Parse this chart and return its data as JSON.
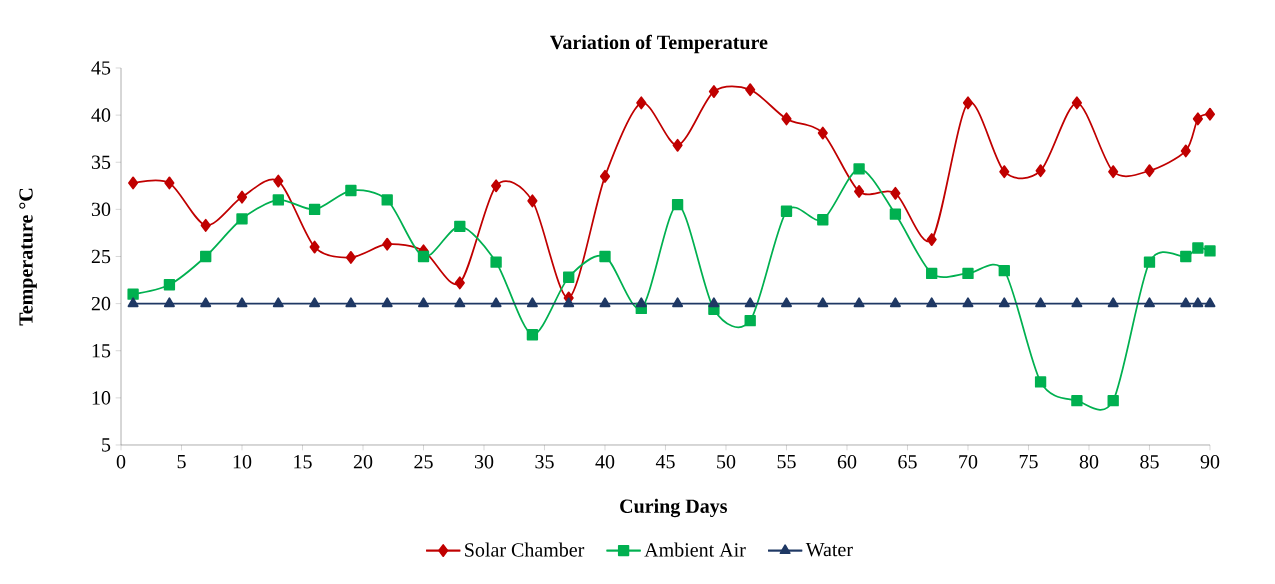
{
  "chart_data": {
    "type": "line",
    "title": "Variation of Temperature",
    "xlabel": "Curing Days",
    "ylabel": "Temperature °C",
    "x": [
      1,
      4,
      7,
      10,
      13,
      16,
      19,
      22,
      25,
      28,
      31,
      34,
      37,
      40,
      43,
      46,
      49,
      52,
      55,
      58,
      61,
      64,
      67,
      70,
      73,
      76,
      79,
      82,
      85,
      88,
      89,
      90
    ],
    "series": [
      {
        "name": "Solar Chamber",
        "color": "#c00000",
        "marker": "diamond",
        "values": [
          32.8,
          32.8,
          28.3,
          31.3,
          33,
          26,
          24.9,
          26.3,
          25.6,
          22.2,
          32.5,
          30.9,
          20.6,
          33.5,
          41.3,
          36.8,
          42.5,
          42.7,
          39.6,
          38.1,
          31.9,
          31.7,
          26.8,
          41.3,
          34,
          34.1,
          41.3,
          34,
          34.1,
          36.2,
          39.6,
          40.1
        ]
      },
      {
        "name": "Ambient Air",
        "color": "#00b050",
        "marker": "square",
        "values": [
          21,
          22,
          25,
          29,
          31,
          30,
          32,
          31,
          25,
          28.2,
          24.4,
          16.7,
          22.8,
          25,
          19.5,
          30.5,
          19.4,
          18.2,
          29.8,
          28.9,
          34.3,
          29.5,
          23.2,
          23.2,
          23.5,
          11.7,
          9.7,
          9.7,
          24.4,
          25,
          25.9,
          25.6
        ]
      },
      {
        "name": "Water",
        "color": "#1f3864",
        "marker": "triangle",
        "values": [
          20,
          20,
          20,
          20,
          20,
          20,
          20,
          20,
          20,
          20,
          20,
          20,
          20,
          20,
          20,
          20,
          20,
          20,
          20,
          20,
          20,
          20,
          20,
          20,
          20,
          20,
          20,
          20,
          20,
          20,
          20,
          20
        ]
      }
    ],
    "xlim": [
      0,
      90
    ],
    "xticks": [
      0,
      5,
      10,
      15,
      20,
      25,
      30,
      35,
      40,
      45,
      50,
      55,
      60,
      65,
      70,
      75,
      80,
      85,
      90
    ],
    "ylim": [
      5,
      45
    ],
    "yticks": [
      5,
      10,
      15,
      20,
      25,
      30,
      35,
      40,
      45
    ],
    "legend": "bottom",
    "grid": false,
    "line_style": "solid"
  }
}
